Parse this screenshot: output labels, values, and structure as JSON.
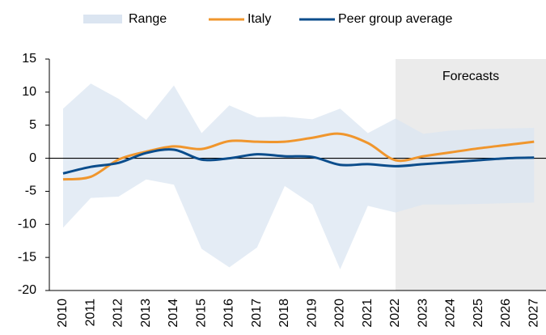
{
  "chart_data": {
    "type": "line",
    "categories": [
      "2010",
      "2011",
      "2012",
      "2013",
      "2014",
      "2015",
      "2016",
      "2017",
      "2018",
      "2019",
      "2020",
      "2021",
      "2022",
      "2023",
      "2024",
      "2025",
      "2026",
      "2027"
    ],
    "range": {
      "name": "Range",
      "color": "#dbe5f1",
      "high": [
        7.5,
        11.3,
        9,
        5.8,
        11,
        3.8,
        8,
        6.2,
        6.3,
        5.9,
        7.5,
        3.8,
        6,
        3.7,
        4.2,
        4.4,
        4.5,
        4.6
      ],
      "low": [
        -10.5,
        -6,
        -5.8,
        -3.2,
        -4,
        -13.7,
        -16.5,
        -13.5,
        -4.2,
        -7,
        -16.8,
        -7.2,
        -8.2,
        -7,
        -7,
        -6.9,
        -6.8,
        -6.7
      ]
    },
    "series": [
      {
        "name": "Italy",
        "color": "#f0962d",
        "values": [
          -3.2,
          -2.8,
          -0.2,
          1.0,
          1.8,
          1.4,
          2.6,
          2.5,
          2.5,
          3.1,
          3.7,
          2.3,
          -0.3,
          0.3,
          0.9,
          1.5,
          2.0,
          2.5
        ]
      },
      {
        "name": "Peer group average",
        "color": "#0b4d8c",
        "values": [
          -2.3,
          -1.3,
          -0.7,
          0.8,
          1.3,
          -0.2,
          0.0,
          0.6,
          0.3,
          0.2,
          -1.0,
          -0.9,
          -1.2,
          -0.9,
          -0.6,
          -0.3,
          0.0,
          0.1
        ]
      }
    ],
    "annotation": {
      "text": "Forecasts",
      "from": "2022",
      "color": "#ebebeb"
    },
    "ylim": [
      -20,
      15
    ],
    "yticks": [
      -20,
      -15,
      -10,
      -5,
      0,
      5,
      10,
      15
    ],
    "grid": false
  }
}
